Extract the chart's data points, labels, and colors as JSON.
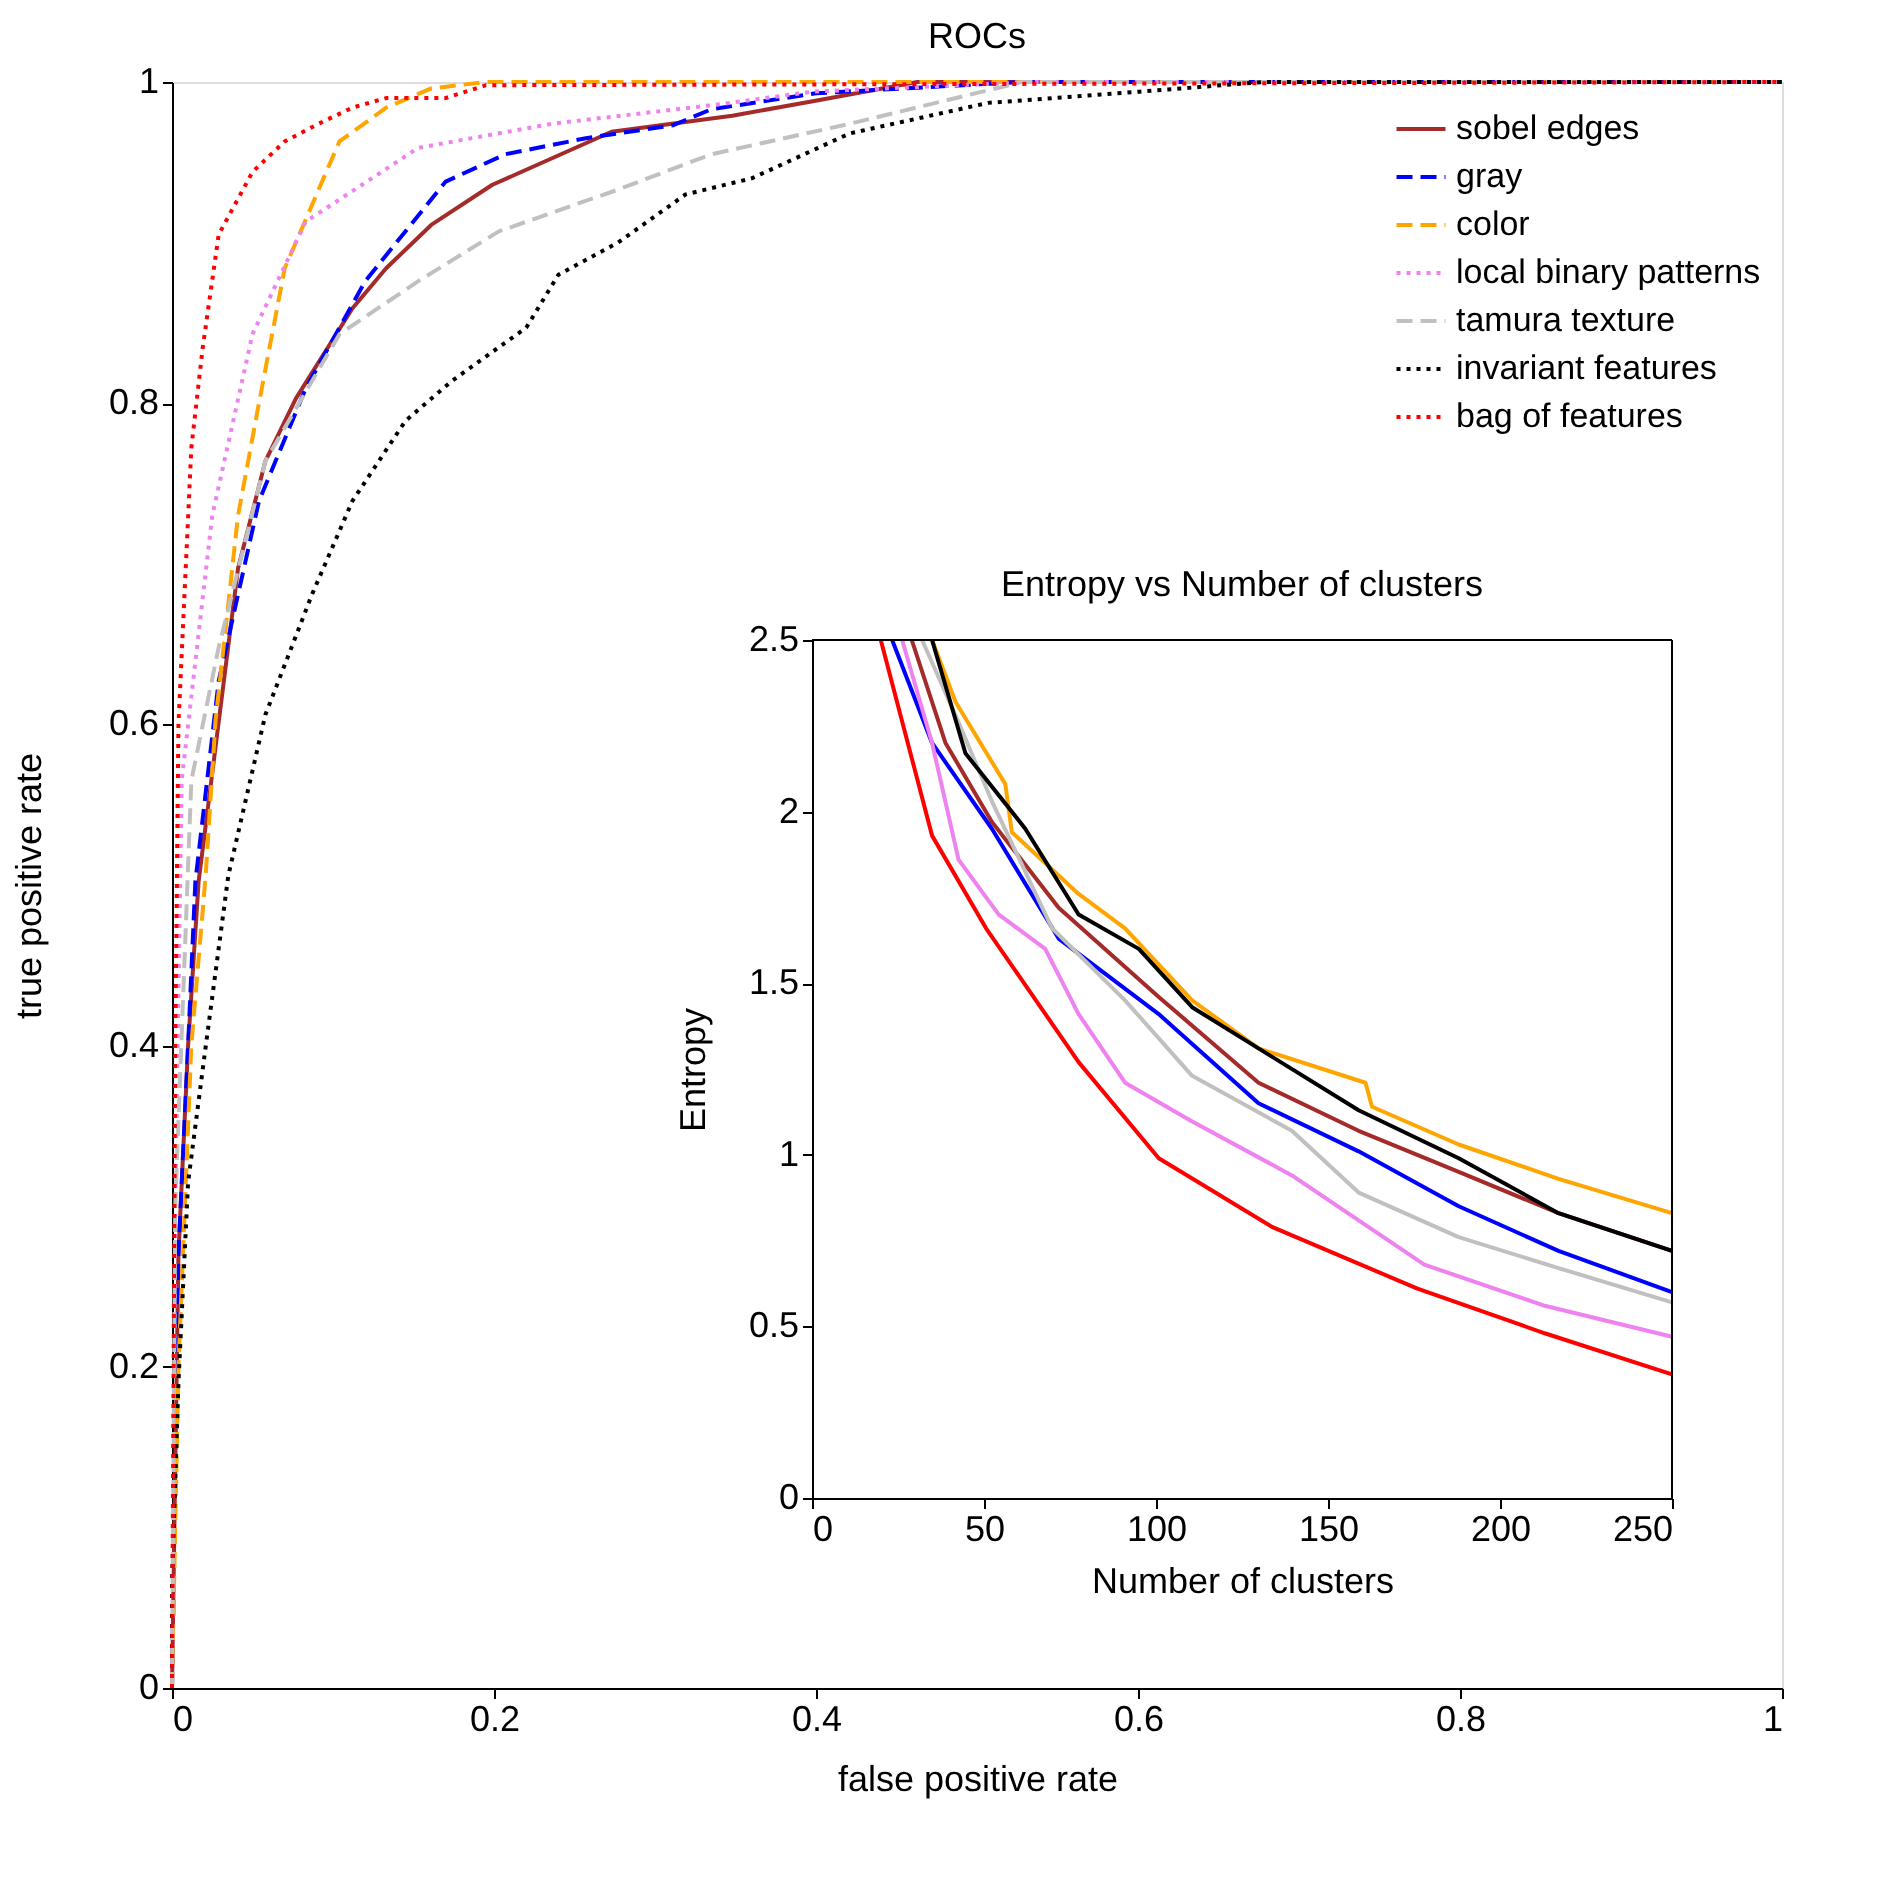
{
  "chart_data": [
    {
      "type": "line",
      "title": "ROCs",
      "xlabel": "false positive rate",
      "ylabel": "true positive rate",
      "xlim": [
        0,
        1
      ],
      "ylim": [
        0,
        1
      ],
      "xticks": [
        0,
        0.2,
        0.4,
        0.6,
        0.8,
        1
      ],
      "yticks": [
        0,
        0.2,
        0.4,
        0.6,
        0.8,
        1
      ],
      "grid": false,
      "legend": "top right",
      "series": [
        {
          "name": "sobel edges",
          "color": "#a52a2a",
          "line_style": "solid",
          "x": [
            0,
            0.004,
            0.01,
            0.0165,
            0.041,
            0.058,
            0.077,
            0.112,
            0.133,
            0.161,
            0.199,
            0.273,
            0.348,
            0.398,
            0.463,
            1
          ],
          "values": [
            0,
            0.27,
            0.4,
            0.502,
            0.697,
            0.764,
            0.803,
            0.859,
            0.884,
            0.911,
            0.936,
            0.969,
            0.979,
            0.988,
            1,
            1
          ]
        },
        {
          "name": "gray",
          "color": "#0000ff",
          "line_style": "dashed",
          "x": [
            0,
            0.004,
            0.01,
            0.0145,
            0.029,
            0.054,
            0.083,
            0.12,
            0.17,
            0.207,
            0.257,
            0.311,
            0.335,
            0.4,
            0.528,
            1
          ],
          "values": [
            0,
            0.27,
            0.4,
            0.502,
            0.627,
            0.739,
            0.809,
            0.876,
            0.938,
            0.955,
            0.965,
            0.973,
            0.983,
            0.993,
            1,
            1
          ]
        },
        {
          "name": "color",
          "color": "#ffa500",
          "line_style": "dashed",
          "x": [
            0,
            0.004,
            0.012,
            0.021,
            0.027,
            0.041,
            0.054,
            0.07,
            0.104,
            0.133,
            0.161,
            0.195,
            1
          ],
          "values": [
            0,
            0.2,
            0.4,
            0.507,
            0.602,
            0.73,
            0.8,
            0.884,
            0.963,
            0.984,
            0.996,
            1,
            1
          ]
        },
        {
          "name": "local binary patterns",
          "color": "#ee82ee",
          "line_style": "dotted",
          "x": [
            0,
            0.002,
            0.006,
            0.025,
            0.05,
            0.083,
            0.153,
            0.236,
            0.339,
            0.398,
            0.534,
            1
          ],
          "values": [
            0,
            0.3,
            0.565,
            0.73,
            0.843,
            0.913,
            0.959,
            0.974,
            0.986,
            0.994,
            1,
            1
          ]
        },
        {
          "name": "tamura texture",
          "color": "#c0c0c0",
          "line_style": "dashed",
          "x": [
            0,
            0.002,
            0.012,
            0.029,
            0.058,
            0.104,
            0.153,
            0.203,
            0.277,
            0.335,
            0.421,
            0.528,
            1
          ],
          "values": [
            0,
            0.3,
            0.565,
            0.648,
            0.764,
            0.843,
            0.876,
            0.907,
            0.933,
            0.955,
            0.974,
            1,
            1
          ]
        },
        {
          "name": "invariant features",
          "color": "#000000",
          "line_style": "dotted",
          "x": [
            0,
            0,
            0.004,
            0.01,
            0.021,
            0.035,
            0.058,
            0.087,
            0.112,
            0.145,
            0.174,
            0.22,
            0.24,
            0.277,
            0.319,
            0.36,
            0.421,
            0.507,
            0.601,
            0.678,
            1
          ],
          "values": [
            0,
            0.066,
            0.19,
            0.315,
            0.4,
            0.506,
            0.606,
            0.681,
            0.739,
            0.789,
            0.814,
            0.847,
            0.88,
            0.9,
            0.93,
            0.94,
            0.968,
            0.987,
            0.994,
            1,
            1
          ]
        },
        {
          "name": "bag of features",
          "color": "#ff0000",
          "line_style": "dotted",
          "x": [
            0,
            0.001,
            0.002,
            0.004,
            0.012,
            0.019,
            0.029,
            0.05,
            0.07,
            0.091,
            0.112,
            0.133,
            0.17,
            0.195,
            1
          ],
          "values": [
            0,
            0.2,
            0.4,
            0.6,
            0.772,
            0.834,
            0.905,
            0.944,
            0.963,
            0.974,
            0.984,
            0.99,
            0.99,
            0.998,
            1
          ]
        }
      ]
    },
    {
      "type": "line",
      "title": "Entropy vs Number of clusters",
      "xlabel": "Number of clusters",
      "ylabel": "Entropy",
      "xlim": [
        0,
        250
      ],
      "ylim": [
        0,
        2.5
      ],
      "xticks": [
        0,
        50,
        100,
        150,
        200,
        250
      ],
      "yticks": [
        0,
        0.5,
        1,
        1.5,
        2,
        2.5
      ],
      "grid": false,
      "series": [
        {
          "color": "#a52a2a",
          "x": [
            29,
            38.8,
            52.3,
            71.7,
            100.8,
            129.8,
            158.9,
            188,
            217,
            250
          ],
          "values": [
            2.5,
            2.2,
            1.97,
            1.72,
            1.46,
            1.21,
            1.07,
            0.95,
            0.83,
            0.72
          ]
        },
        {
          "color": "#0000ff",
          "x": [
            23.3,
            34.9,
            52.3,
            71.7,
            100.8,
            129.8,
            158.9,
            188,
            217,
            250
          ],
          "values": [
            2.5,
            2.2,
            1.95,
            1.63,
            1.41,
            1.15,
            1.01,
            0.85,
            0.72,
            0.6
          ]
        },
        {
          "color": "#ffa500",
          "x": [
            34.9,
            41.7,
            56.2,
            58.1,
            77.5,
            91,
            110.5,
            129.8,
            160.9,
            162.8,
            188,
            217,
            250
          ],
          "values": [
            2.5,
            2.32,
            2.08,
            1.94,
            1.76,
            1.66,
            1.45,
            1.31,
            1.21,
            1.14,
            1.03,
            0.93,
            0.83
          ]
        },
        {
          "color": "#ee82ee",
          "x": [
            26.2,
            34.9,
            42.6,
            54.3,
            67.8,
            77.5,
            91,
            110,
            139.5,
            178,
            213,
            250
          ],
          "values": [
            2.5,
            2.2,
            1.86,
            1.7,
            1.6,
            1.41,
            1.21,
            1.1,
            0.94,
            0.68,
            0.56,
            0.47
          ]
        },
        {
          "color": "#c0c0c0",
          "x": [
            32,
            42.6,
            52.3,
            69.8,
            91,
            110.5,
            139.5,
            158.9,
            188,
            217,
            250
          ],
          "values": [
            2.5,
            2.26,
            2.03,
            1.66,
            1.45,
            1.23,
            1.07,
            0.89,
            0.76,
            0.67,
            0.57
          ]
        },
        {
          "color": "#000000",
          "x": [
            34.9,
            44.6,
            62,
            77.5,
            95,
            110.5,
            129.8,
            158.9,
            188,
            217,
            250
          ],
          "values": [
            2.5,
            2.17,
            1.95,
            1.7,
            1.6,
            1.43,
            1.31,
            1.13,
            0.99,
            0.83,
            0.72
          ]
        },
        {
          "color": "#ff0000",
          "x": [
            20,
            34.9,
            50.6,
            77.5,
            100.8,
            133.7,
            176,
            213,
            250
          ],
          "values": [
            2.5,
            1.93,
            1.66,
            1.27,
            0.99,
            0.79,
            0.61,
            0.48,
            0.36
          ]
        }
      ]
    }
  ]
}
